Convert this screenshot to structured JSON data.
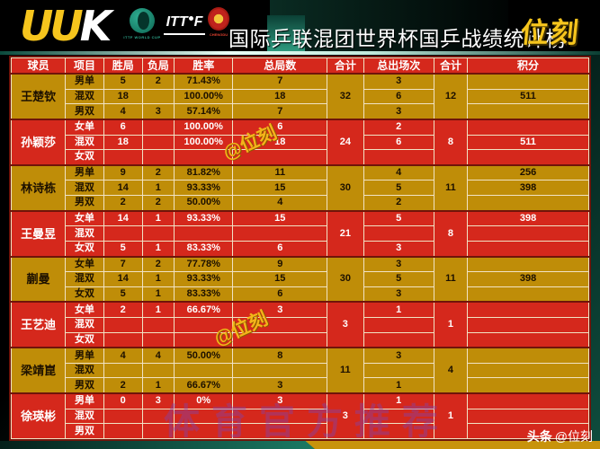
{
  "header": {
    "brand_left_letters": [
      "U",
      "U",
      "K"
    ],
    "ittf_world_cup": "ITTF WORLD CUP",
    "ittf": "ITT",
    "ittf_f": "F",
    "chengdu": "CHENGDU",
    "title": "国际乒联混团世界杯国乒战绩统计榜",
    "brand_right": "位刻"
  },
  "watermarks": {
    "gold_handle": "@位刻",
    "purple": "体育官方推荐",
    "toutiao": "头条",
    "handle": "@位刻"
  },
  "colors": {
    "row_red": "#d5281c",
    "row_gold": "#bf8d08",
    "border_cream": "#f1e3c4",
    "outer_maroon": "#70140a",
    "accent_yellow": "#f6c51d",
    "teal": "#1b7a64"
  },
  "table": {
    "headers": [
      "球员",
      "项目",
      "胜局",
      "负局",
      "胜率",
      "总局数",
      "合计",
      "总出场次",
      "合计",
      "积分"
    ],
    "players": [
      {
        "name": "王楚钦",
        "theme": "gold",
        "total_games": "32",
        "total_appearances": "12",
        "rows": [
          {
            "event": "男单",
            "wins": "5",
            "losses": "2",
            "rate": "71.43%",
            "games": "7",
            "appearances": "3",
            "points": ""
          },
          {
            "event": "混双",
            "wins": "18",
            "losses": "",
            "rate": "100.00%",
            "games": "18",
            "appearances": "6",
            "points": "511"
          },
          {
            "event": "男双",
            "wins": "4",
            "losses": "3",
            "rate": "57.14%",
            "games": "7",
            "appearances": "3",
            "points": ""
          }
        ]
      },
      {
        "name": "孙颖莎",
        "theme": "red",
        "total_games": "24",
        "total_appearances": "8",
        "rows": [
          {
            "event": "女单",
            "wins": "6",
            "losses": "",
            "rate": "100.00%",
            "games": "6",
            "appearances": "2",
            "points": ""
          },
          {
            "event": "混双",
            "wins": "18",
            "losses": "",
            "rate": "100.00%",
            "games": "18",
            "appearances": "6",
            "points": "511"
          },
          {
            "event": "女双",
            "wins": "",
            "losses": "",
            "rate": "",
            "games": "",
            "appearances": "",
            "points": ""
          }
        ]
      },
      {
        "name": "林诗栋",
        "theme": "gold",
        "total_games": "30",
        "total_appearances": "11",
        "rows": [
          {
            "event": "男单",
            "wins": "9",
            "losses": "2",
            "rate": "81.82%",
            "games": "11",
            "appearances": "4",
            "points": "256"
          },
          {
            "event": "混双",
            "wins": "14",
            "losses": "1",
            "rate": "93.33%",
            "games": "15",
            "appearances": "5",
            "points": "398"
          },
          {
            "event": "男双",
            "wins": "2",
            "losses": "2",
            "rate": "50.00%",
            "games": "4",
            "appearances": "2",
            "points": ""
          }
        ]
      },
      {
        "name": "王曼昱",
        "theme": "red",
        "total_games": "21",
        "total_appearances": "8",
        "rows": [
          {
            "event": "女单",
            "wins": "14",
            "losses": "1",
            "rate": "93.33%",
            "games": "15",
            "appearances": "5",
            "points": "398"
          },
          {
            "event": "混双",
            "wins": "",
            "losses": "",
            "rate": "",
            "games": "",
            "appearances": "",
            "points": ""
          },
          {
            "event": "女双",
            "wins": "5",
            "losses": "1",
            "rate": "83.33%",
            "games": "6",
            "appearances": "3",
            "points": ""
          }
        ]
      },
      {
        "name": "蒯曼",
        "theme": "gold",
        "total_games": "30",
        "total_appearances": "11",
        "rows": [
          {
            "event": "女单",
            "wins": "7",
            "losses": "2",
            "rate": "77.78%",
            "games": "9",
            "appearances": "3",
            "points": ""
          },
          {
            "event": "混双",
            "wins": "14",
            "losses": "1",
            "rate": "93.33%",
            "games": "15",
            "appearances": "5",
            "points": "398"
          },
          {
            "event": "女双",
            "wins": "5",
            "losses": "1",
            "rate": "83.33%",
            "games": "6",
            "appearances": "3",
            "points": ""
          }
        ]
      },
      {
        "name": "王艺迪",
        "theme": "red",
        "total_games": "3",
        "total_appearances": "1",
        "rows": [
          {
            "event": "女单",
            "wins": "2",
            "losses": "1",
            "rate": "66.67%",
            "games": "3",
            "appearances": "1",
            "points": ""
          },
          {
            "event": "混双",
            "wins": "",
            "losses": "",
            "rate": "",
            "games": "",
            "appearances": "",
            "points": ""
          },
          {
            "event": "女双",
            "wins": "",
            "losses": "",
            "rate": "",
            "games": "",
            "appearances": "",
            "points": ""
          }
        ]
      },
      {
        "name": "梁靖崑",
        "theme": "gold",
        "total_games": "11",
        "total_appearances": "4",
        "rows": [
          {
            "event": "男单",
            "wins": "4",
            "losses": "4",
            "rate": "50.00%",
            "games": "8",
            "appearances": "3",
            "points": ""
          },
          {
            "event": "混双",
            "wins": "",
            "losses": "",
            "rate": "",
            "games": "",
            "appearances": "",
            "points": ""
          },
          {
            "event": "男双",
            "wins": "2",
            "losses": "1",
            "rate": "66.67%",
            "games": "3",
            "appearances": "1",
            "points": ""
          }
        ]
      },
      {
        "name": "徐瑛彬",
        "theme": "red",
        "total_games": "3",
        "total_appearances": "1",
        "rows": [
          {
            "event": "男单",
            "wins": "0",
            "losses": "3",
            "rate": "0%",
            "games": "3",
            "appearances": "1",
            "points": ""
          },
          {
            "event": "混双",
            "wins": "",
            "losses": "",
            "rate": "",
            "games": "",
            "appearances": "",
            "points": ""
          },
          {
            "event": "男双",
            "wins": "",
            "losses": "",
            "rate": "",
            "games": "",
            "appearances": "",
            "points": ""
          }
        ]
      }
    ]
  },
  "chart_data": {
    "type": "table",
    "title": "国际乒联混团世界杯国乒战绩统计榜",
    "columns": [
      "球员",
      "项目",
      "胜局",
      "负局",
      "胜率",
      "总局数",
      "合计",
      "总出场次",
      "合计",
      "积分"
    ],
    "rows": [
      [
        "王楚钦",
        "男单",
        "5",
        "2",
        "71.43%",
        "7",
        "32",
        "3",
        "12",
        ""
      ],
      [
        "王楚钦",
        "混双",
        "18",
        "",
        "100.00%",
        "18",
        "32",
        "6",
        "12",
        "511"
      ],
      [
        "王楚钦",
        "男双",
        "4",
        "3",
        "57.14%",
        "7",
        "32",
        "3",
        "12",
        ""
      ],
      [
        "孙颖莎",
        "女单",
        "6",
        "",
        "100.00%",
        "6",
        "24",
        "2",
        "8",
        ""
      ],
      [
        "孙颖莎",
        "混双",
        "18",
        "",
        "100.00%",
        "18",
        "24",
        "6",
        "8",
        "511"
      ],
      [
        "孙颖莎",
        "女双",
        "",
        "",
        "",
        "",
        "24",
        "",
        "8",
        ""
      ],
      [
        "林诗栋",
        "男单",
        "9",
        "2",
        "81.82%",
        "11",
        "30",
        "4",
        "11",
        "256"
      ],
      [
        "林诗栋",
        "混双",
        "14",
        "1",
        "93.33%",
        "15",
        "30",
        "5",
        "11",
        "398"
      ],
      [
        "林诗栋",
        "男双",
        "2",
        "2",
        "50.00%",
        "4",
        "30",
        "2",
        "11",
        ""
      ],
      [
        "王曼昱",
        "女单",
        "14",
        "1",
        "93.33%",
        "15",
        "21",
        "5",
        "8",
        "398"
      ],
      [
        "王曼昱",
        "混双",
        "",
        "",
        "",
        "",
        "21",
        "",
        "8",
        ""
      ],
      [
        "王曼昱",
        "女双",
        "5",
        "1",
        "83.33%",
        "6",
        "21",
        "3",
        "8",
        ""
      ],
      [
        "蒯曼",
        "女单",
        "7",
        "2",
        "77.78%",
        "9",
        "30",
        "3",
        "11",
        ""
      ],
      [
        "蒯曼",
        "混双",
        "14",
        "1",
        "93.33%",
        "15",
        "30",
        "5",
        "11",
        "398"
      ],
      [
        "蒯曼",
        "女双",
        "5",
        "1",
        "83.33%",
        "6",
        "30",
        "3",
        "11",
        ""
      ],
      [
        "王艺迪",
        "女单",
        "2",
        "1",
        "66.67%",
        "3",
        "3",
        "1",
        "1",
        ""
      ],
      [
        "王艺迪",
        "混双",
        "",
        "",
        "",
        "",
        "3",
        "",
        "1",
        ""
      ],
      [
        "王艺迪",
        "女双",
        "",
        "",
        "",
        "",
        "3",
        "",
        "1",
        ""
      ],
      [
        "梁靖崑",
        "男单",
        "4",
        "4",
        "50.00%",
        "8",
        "11",
        "3",
        "4",
        ""
      ],
      [
        "梁靖崑",
        "混双",
        "",
        "",
        "",
        "",
        "11",
        "",
        "4",
        ""
      ],
      [
        "梁靖崑",
        "男双",
        "2",
        "1",
        "66.67%",
        "3",
        "11",
        "1",
        "4",
        ""
      ],
      [
        "徐瑛彬",
        "男单",
        "0",
        "3",
        "0%",
        "3",
        "3",
        "1",
        "1",
        ""
      ],
      [
        "徐瑛彬",
        "混双",
        "",
        "",
        "",
        "",
        "3",
        "",
        "1",
        ""
      ],
      [
        "徐瑛彬",
        "男双",
        "",
        "",
        "",
        "",
        "3",
        "",
        "1",
        ""
      ]
    ]
  }
}
